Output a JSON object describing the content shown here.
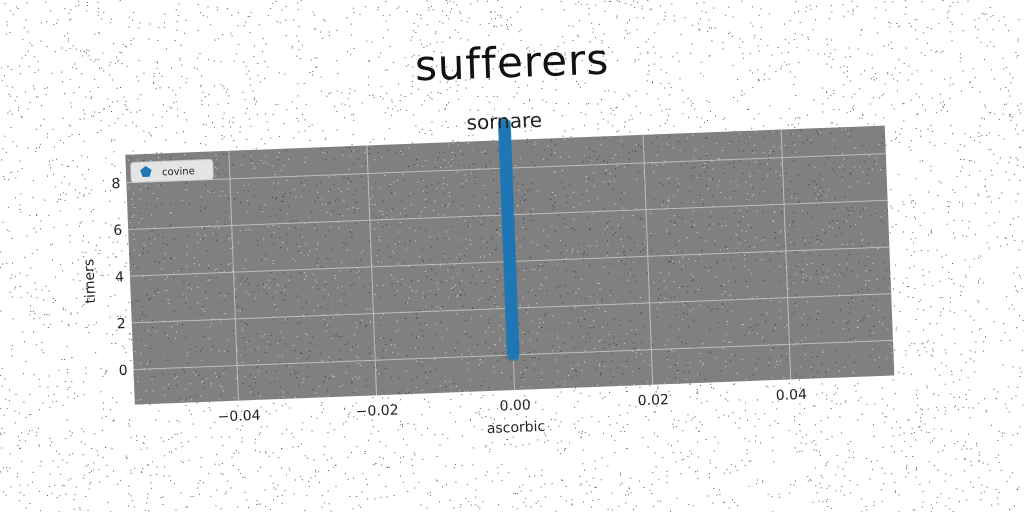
{
  "figure": {
    "suptitle": "sufferers"
  },
  "chart_data": {
    "type": "scatter",
    "title": "sornare",
    "xlabel": "ascorbic",
    "ylabel": "timers",
    "xlim": [
      -0.055,
      0.055
    ],
    "ylim": [
      -1.5,
      9.2
    ],
    "xticks": [
      -0.04,
      -0.02,
      0.0,
      0.02,
      0.04
    ],
    "xtick_labels": [
      "−0.04",
      "−0.02",
      "0.00",
      "0.02",
      "0.04"
    ],
    "yticks": [
      0,
      2,
      4,
      6,
      8
    ],
    "ytick_labels": [
      "0",
      "2",
      "4",
      "6",
      "8"
    ],
    "grid": true,
    "legend_position": "upper-left",
    "series": [
      {
        "name": "covine",
        "color": "#1f77b4",
        "marker": "pentagon",
        "x": [
          0,
          0,
          0,
          0,
          0,
          0,
          0,
          0,
          0,
          0,
          0,
          0,
          0,
          0,
          0,
          0,
          0,
          0,
          0,
          0,
          0,
          0,
          0,
          0,
          0,
          0,
          0,
          0,
          0,
          0,
          0,
          0,
          0,
          0,
          0,
          0,
          0,
          0,
          0,
          0,
          0,
          0,
          0,
          0,
          0,
          0,
          0,
          0,
          0,
          0,
          0,
          0,
          0,
          0,
          0,
          0,
          0,
          0,
          0,
          0,
          0,
          0,
          0,
          0,
          0,
          0,
          0,
          0,
          0,
          0,
          0,
          0,
          0,
          0,
          0,
          0,
          0,
          0,
          0,
          0,
          0,
          0,
          0,
          0,
          0,
          0,
          0,
          0,
          0,
          0,
          0,
          0,
          0,
          0,
          0,
          0,
          0,
          0,
          0,
          0
        ],
        "y": [
          0.0,
          0.1,
          0.2,
          0.3,
          0.4,
          0.5,
          0.6,
          0.7,
          0.8,
          0.9,
          1.0,
          1.1,
          1.2,
          1.3,
          1.4,
          1.5,
          1.6,
          1.7,
          1.8,
          1.9,
          2.0,
          2.1,
          2.2,
          2.3,
          2.4,
          2.5,
          2.6,
          2.7,
          2.8,
          2.9,
          3.0,
          3.1,
          3.2,
          3.3,
          3.4,
          3.5,
          3.6,
          3.7,
          3.8,
          3.9,
          4.0,
          4.1,
          4.2,
          4.3,
          4.4,
          4.5,
          4.6,
          4.7,
          4.8,
          4.9,
          5.0,
          5.1,
          5.2,
          5.3,
          5.4,
          5.5,
          5.6,
          5.7,
          5.8,
          5.9,
          6.0,
          6.1,
          6.2,
          6.3,
          6.4,
          6.5,
          6.6,
          6.7,
          6.8,
          6.9,
          7.0,
          7.1,
          7.2,
          7.3,
          7.4,
          7.5,
          7.6,
          7.7,
          7.8,
          7.9,
          8.0,
          8.1,
          8.2,
          8.3,
          8.4,
          8.5,
          8.6,
          8.7,
          8.8,
          8.9,
          9.0,
          9.1,
          9.2,
          9.3,
          9.4,
          9.5,
          9.6,
          9.7,
          9.8,
          9.9
        ]
      }
    ]
  },
  "colors": {
    "plot_background": "#808080",
    "grid": "#bdbdbd",
    "marker": "#1f77b4"
  }
}
